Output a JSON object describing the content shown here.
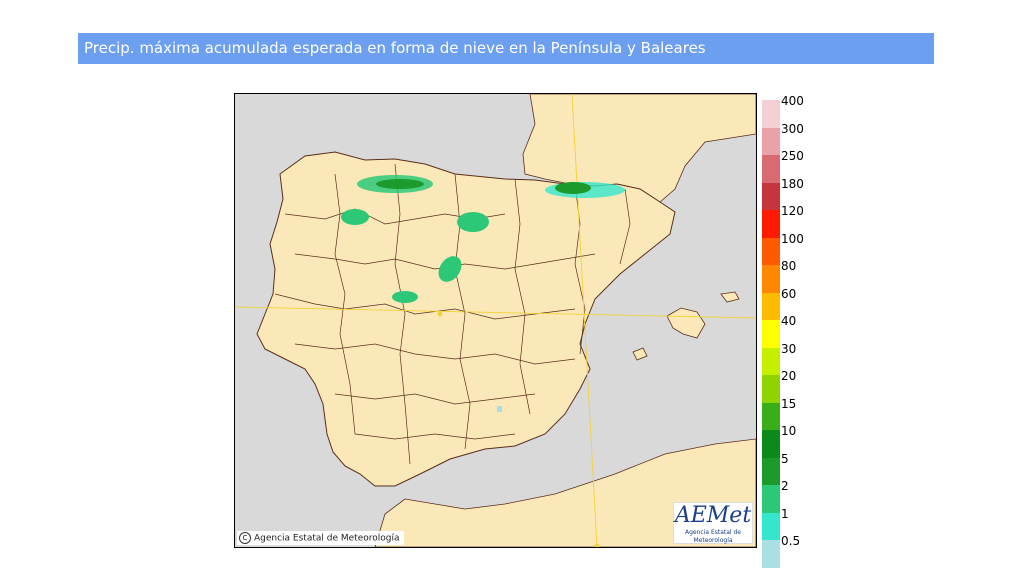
{
  "title": "Precip. máxima acumulada esperada en forma de nieve en la Península y Baleares",
  "map": {
    "copyright": "Agencia Estatal de Meteorología",
    "copyright_symbol": "C",
    "logo_text": "AEMet",
    "logo_subtitle": "Agencia Estatal de Meteorología",
    "colors": {
      "sea": "#d9d9d9",
      "land_spain": "#fbe8b8",
      "land_other": "#fbe8b8",
      "borders": "#5a2d1a",
      "graticule": "#f2d23a"
    }
  },
  "legend": {
    "labels": [
      "400",
      "300",
      "250",
      "180",
      "120",
      "100",
      "80",
      "60",
      "40",
      "30",
      "20",
      "15",
      "10",
      "5",
      "2",
      "1",
      "0.5"
    ],
    "colors": [
      "#f4d0d4",
      "#e9a2a8",
      "#d96a72",
      "#c4353d",
      "#ff1a00",
      "#ff5a00",
      "#ff8800",
      "#ffbb00",
      "#ffff00",
      "#c6ef00",
      "#8fd400",
      "#3aad1a",
      "#0b8a1a",
      "#1c9a2c",
      "#2cc878",
      "#33e6cc",
      "#a8e0e4"
    ]
  }
}
